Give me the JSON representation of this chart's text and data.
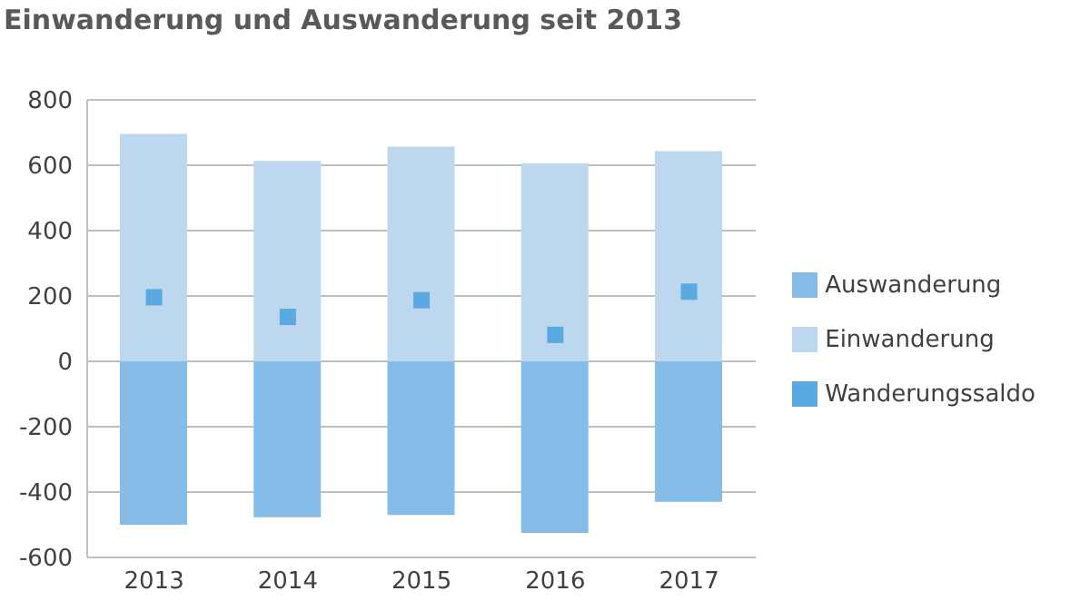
{
  "chart_data": {
    "type": "bar",
    "title": "Einwanderung und Auswanderung seit 2013",
    "categories": [
      "2013",
      "2014",
      "2015",
      "2016",
      "2017"
    ],
    "series": [
      {
        "name": "Einwanderung",
        "color": "#bdd7ee",
        "values": [
          696,
          613,
          657,
          606,
          643
        ]
      },
      {
        "name": "Auswanderung",
        "color": "#85bce8",
        "values": [
          -500,
          -477,
          -470,
          -525,
          -430
        ]
      },
      {
        "name": "Wanderungssaldo",
        "type": "scatter",
        "color": "#5aa9e0",
        "values": [
          196,
          136,
          187,
          81,
          213
        ]
      }
    ],
    "stacked": true,
    "ylim": [
      -600,
      800
    ],
    "yticks": [
      -600,
      -400,
      -200,
      0,
      200,
      400,
      600,
      800
    ],
    "grid": "y",
    "legend": "right",
    "marker": "square"
  }
}
